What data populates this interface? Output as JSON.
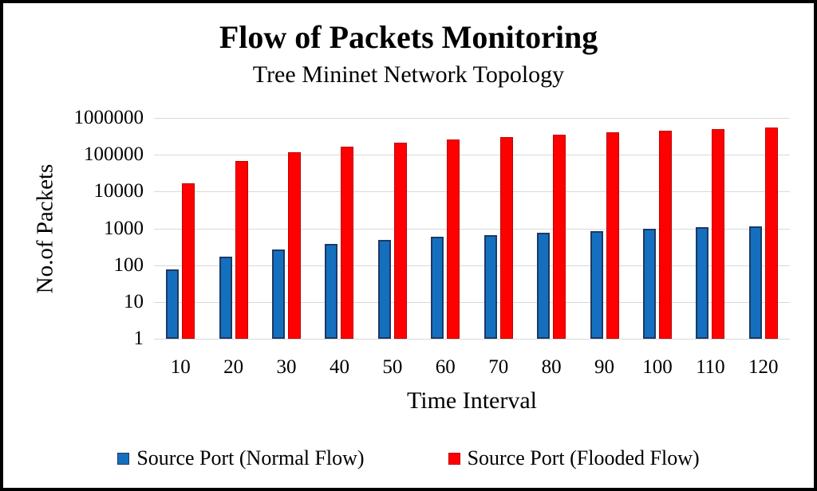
{
  "frame": {
    "background": "#FFFFFF",
    "border_color": "#000000"
  },
  "chart_data": {
    "type": "bar",
    "title": "Flow of Packets Monitoring",
    "subtitle": "Tree Mininet Network Topology",
    "xlabel": "Time Interval",
    "ylabel": "No.of Packets",
    "y_scale": "log10",
    "ylim": [
      1,
      1000000
    ],
    "y_ticks": [
      1,
      10,
      100,
      1000,
      10000,
      100000,
      1000000
    ],
    "grid": true,
    "gridline_color": "#D9D9D9",
    "legend_position": "bottom",
    "categories": [
      10,
      20,
      30,
      40,
      50,
      60,
      70,
      80,
      90,
      100,
      110,
      120
    ],
    "series": [
      {
        "name": "Source Port (Normal Flow)",
        "color": "#1470BE",
        "border_color": "#1F3864",
        "border_width": 2,
        "values": [
          78,
          170,
          270,
          380,
          480,
          580,
          670,
          760,
          860,
          980,
          1060,
          1160
        ]
      },
      {
        "name": "Source Port (Flooded Flow)",
        "color": "#FE0000",
        "border_color": "#C00000",
        "border_width": 1,
        "values": [
          16500,
          68000,
          118000,
          165000,
          210000,
          258000,
          305000,
          355000,
          405000,
          460000,
          510000,
          560000
        ]
      }
    ]
  }
}
